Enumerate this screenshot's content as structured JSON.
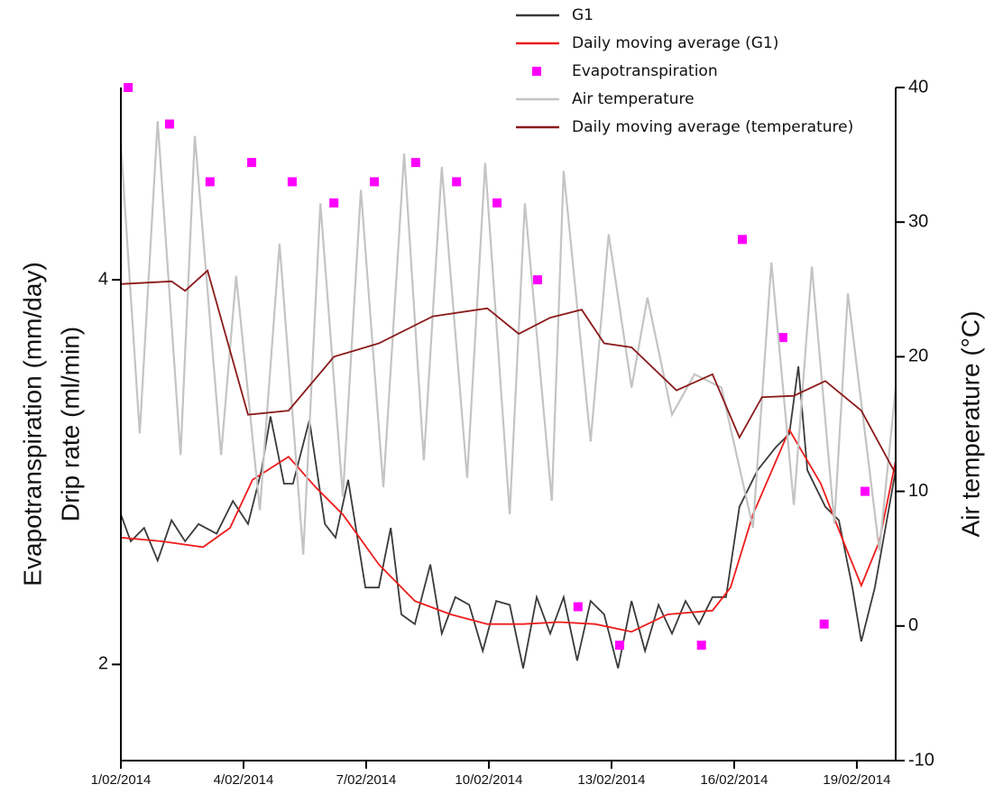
{
  "chart_data": {
    "type": "line",
    "ylabels": [
      "Evapotranspiration (mm/day)",
      "Drip rate (ml/min)"
    ],
    "y2label": "Air temperature (°C)",
    "xlim": [
      0,
      18.95
    ],
    "xticks": [
      {
        "value": 0,
        "label": "1/02/2014"
      },
      {
        "value": 3,
        "label": "4/02/2014"
      },
      {
        "value": 6,
        "label": "7/02/2014"
      },
      {
        "value": 9,
        "label": "10/02/2014"
      },
      {
        "value": 12,
        "label": "13/02/2014"
      },
      {
        "value": 15,
        "label": "16/02/2014"
      },
      {
        "value": 18,
        "label": "19/02/2014"
      }
    ],
    "ylim": [
      1.5,
      5
    ],
    "yticks": [
      2,
      4
    ],
    "y2lim": [
      -10,
      40
    ],
    "y2ticks": [
      -10,
      0,
      10,
      20,
      30,
      40
    ],
    "legend": "top-right",
    "series": [
      {
        "name": "G1",
        "type": "line",
        "color": "#3a3a3a",
        "x": [
          0,
          0.24,
          0.57,
          0.9,
          1.24,
          1.57,
          1.9,
          2.34,
          2.74,
          3.11,
          3.44,
          3.66,
          3.99,
          4.21,
          4.61,
          4.99,
          5.25,
          5.56,
          5.98,
          6.31,
          6.6,
          6.86,
          7.19,
          7.57,
          7.85,
          8.18,
          8.52,
          8.85,
          9.18,
          9.51,
          9.84,
          10.17,
          10.5,
          10.83,
          11.16,
          11.49,
          11.82,
          12.16,
          12.49,
          12.82,
          13.15,
          13.48,
          13.81,
          14.14,
          14.47,
          14.8,
          15.13,
          15.57,
          16.02,
          16.35,
          16.57,
          16.79,
          17.23,
          17.56,
          17.89,
          18.11,
          18.44,
          18.95
        ],
        "values": [
          2.78,
          2.64,
          2.71,
          2.54,
          2.75,
          2.64,
          2.73,
          2.68,
          2.85,
          2.73,
          3.01,
          3.29,
          2.94,
          2.94,
          3.27,
          2.73,
          2.66,
          2.96,
          2.4,
          2.4,
          2.71,
          2.26,
          2.21,
          2.52,
          2.16,
          2.35,
          2.31,
          2.07,
          2.33,
          2.31,
          1.98,
          2.35,
          2.16,
          2.35,
          2.02,
          2.33,
          2.26,
          1.98,
          2.33,
          2.07,
          2.31,
          2.16,
          2.33,
          2.21,
          2.35,
          2.35,
          2.82,
          3.01,
          3.13,
          3.2,
          3.55,
          3.01,
          2.82,
          2.75,
          2.4,
          2.12,
          2.4,
          3.01
        ]
      },
      {
        "name": "Daily moving average (G1)",
        "type": "line",
        "color": "#ee1c1c",
        "x": [
          0,
          1.01,
          2.01,
          2.67,
          3.22,
          4.1,
          4.77,
          5.43,
          6.31,
          7.19,
          8.07,
          8.96,
          9.84,
          10.72,
          11.6,
          12.49,
          13.37,
          14.47,
          14.91,
          15.46,
          16.35,
          17.12,
          17.67,
          18.11,
          18.55,
          18.95
        ],
        "values": [
          2.66,
          2.64,
          2.61,
          2.71,
          2.96,
          3.08,
          2.92,
          2.78,
          2.52,
          2.33,
          2.26,
          2.21,
          2.21,
          2.22,
          2.21,
          2.17,
          2.26,
          2.28,
          2.4,
          2.78,
          3.22,
          2.94,
          2.64,
          2.41,
          2.64,
          3.06
        ]
      },
      {
        "name": "Evapotranspiration",
        "type": "scatter",
        "color": "#ff00ff",
        "x": [
          0.18,
          1.19,
          2.18,
          3.2,
          4.19,
          5.21,
          6.2,
          7.21,
          8.21,
          9.2,
          10.19,
          11.18,
          12.2,
          14.2,
          15.2,
          16.19,
          17.2,
          18.2
        ],
        "values": [
          5.0,
          4.81,
          4.51,
          4.61,
          4.51,
          4.4,
          4.51,
          4.61,
          4.51,
          4.4,
          4.0,
          2.3,
          2.1,
          2.1,
          4.21,
          3.7,
          2.21,
          2.9
        ]
      },
      {
        "name": "Air temperature",
        "type": "line",
        "color": "#c4c4c4",
        "axis": "y2",
        "x": [
          0,
          0.46,
          0.9,
          1.46,
          1.81,
          2.45,
          2.82,
          3.4,
          3.88,
          4.46,
          4.88,
          5.43,
          5.87,
          6.42,
          6.93,
          7.41,
          7.85,
          8.47,
          8.91,
          9.51,
          9.88,
          10.54,
          10.83,
          11.49,
          11.93,
          12.49,
          12.88,
          13.48,
          14.03,
          14.69,
          15.46,
          15.91,
          16.46,
          16.9,
          17.45,
          17.78,
          18.55,
          18.95
        ],
        "values": [
          35.8,
          14.3,
          37.5,
          12.7,
          36.4,
          12.7,
          26,
          8.6,
          28.4,
          5.3,
          31.4,
          9.6,
          32.4,
          10.3,
          35.1,
          12.3,
          34.1,
          11,
          34.4,
          8.3,
          31.4,
          9.3,
          33.8,
          13.7,
          29.1,
          17.7,
          24.4,
          15.7,
          18.7,
          17.7,
          7.3,
          27,
          9,
          26.7,
          7.6,
          24.7,
          5.6,
          17.7
        ]
      },
      {
        "name": "Daily moving average (temperature)",
        "type": "line",
        "color": "#8b1a1a",
        "axis": "y2",
        "x": [
          0,
          1.24,
          1.57,
          2.12,
          3.11,
          4.1,
          5.21,
          6.31,
          7.63,
          8.96,
          9.73,
          10.5,
          11.27,
          11.82,
          12.49,
          13.59,
          14.47,
          15.13,
          15.68,
          16.46,
          17.23,
          18.11,
          18.95
        ],
        "values": [
          25.4,
          25.6,
          24.9,
          26.4,
          15.7,
          16,
          20,
          21,
          23,
          23.6,
          21.7,
          22.9,
          23.5,
          21,
          20.7,
          17.5,
          18.7,
          14,
          17,
          17.1,
          18.2,
          16,
          11.3
        ]
      }
    ]
  }
}
